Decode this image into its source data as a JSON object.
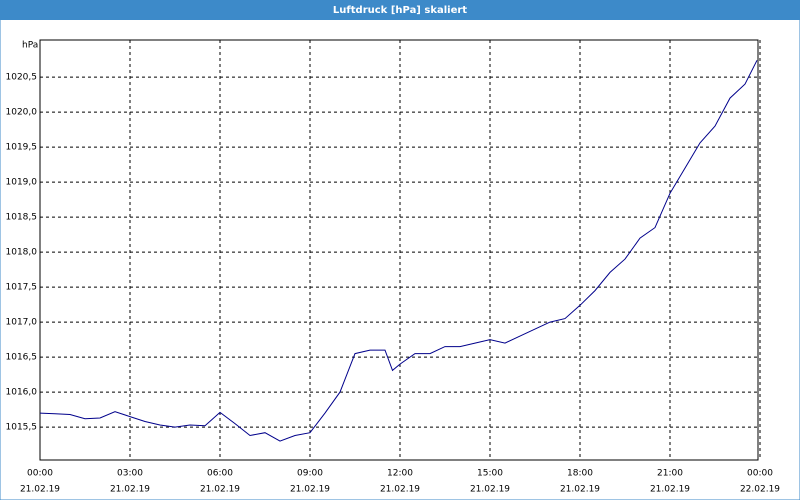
{
  "chart_data": {
    "type": "line",
    "title": "Luftdruck [hPa] skaliert",
    "y_label": "hPa",
    "x": [
      0,
      0.5,
      1,
      1.5,
      2,
      2.5,
      3,
      3.5,
      4,
      4.5,
      5,
      5.5,
      6,
      6.5,
      7,
      7.5,
      8,
      8.5,
      9,
      9.5,
      10,
      10.5,
      11,
      11.5,
      11.75,
      12,
      12.5,
      13,
      13.5,
      14,
      14.5,
      15,
      15.5,
      16,
      16.5,
      17,
      17.5,
      18,
      18.5,
      19,
      19.5,
      20,
      20.5,
      21,
      21.5,
      22,
      22.5,
      23,
      23.5,
      23.9
    ],
    "series": [
      {
        "name": "Luftdruck",
        "color": "#00008b",
        "values": [
          1015.7,
          1015.69,
          1015.68,
          1015.62,
          1015.63,
          1015.72,
          1015.65,
          1015.58,
          1015.53,
          1015.5,
          1015.53,
          1015.52,
          1015.71,
          1015.55,
          1015.38,
          1015.42,
          1015.3,
          1015.38,
          1015.42,
          1015.7,
          1016.0,
          1016.55,
          1016.6,
          1016.6,
          1016.31,
          1016.4,
          1016.55,
          1016.55,
          1016.65,
          1016.65,
          1016.7,
          1016.75,
          1016.7,
          1016.8,
          1016.9,
          1017.0,
          1017.05,
          1017.24,
          1017.45,
          1017.71,
          1017.9,
          1018.2,
          1018.35,
          1018.84,
          1019.2,
          1019.56,
          1019.8,
          1020.2,
          1020.4,
          1020.74
        ]
      }
    ],
    "xlim": [
      0,
      24
    ],
    "xticks": [
      {
        "value": 0,
        "label": [
          "00:00",
          "21.02.19"
        ]
      },
      {
        "value": 3,
        "label": [
          "03:00",
          "21.02.19"
        ]
      },
      {
        "value": 6,
        "label": [
          "06:00",
          "21.02.19"
        ]
      },
      {
        "value": 9,
        "label": [
          "09:00",
          "21.02.19"
        ]
      },
      {
        "value": 12,
        "label": [
          "12:00",
          "21.02.19"
        ]
      },
      {
        "value": 15,
        "label": [
          "15:00",
          "21.02.19"
        ]
      },
      {
        "value": 18,
        "label": [
          "18:00",
          "21.02.19"
        ]
      },
      {
        "value": 21,
        "label": [
          "21:00",
          "21.02.19"
        ]
      },
      {
        "value": 24,
        "label": [
          "00:00",
          "22.02.19"
        ]
      }
    ],
    "ylim": [
      1015.03,
      1021.03
    ],
    "yticks": [
      {
        "value": 1015.5,
        "label": "1015,5"
      },
      {
        "value": 1016,
        "label": "1016,0"
      },
      {
        "value": 1016.5,
        "label": "1016,5"
      },
      {
        "value": 1017,
        "label": "1017,0"
      },
      {
        "value": 1017.5,
        "label": "1017,5"
      },
      {
        "value": 1018,
        "label": "1018,0"
      },
      {
        "value": 1018.5,
        "label": "1018,5"
      },
      {
        "value": 1019,
        "label": "1019,0"
      },
      {
        "value": 1019.5,
        "label": "1019,5"
      },
      {
        "value": 1020,
        "label": "1020,0"
      },
      {
        "value": 1020.5,
        "label": "1020,5"
      }
    ],
    "grid": true
  }
}
